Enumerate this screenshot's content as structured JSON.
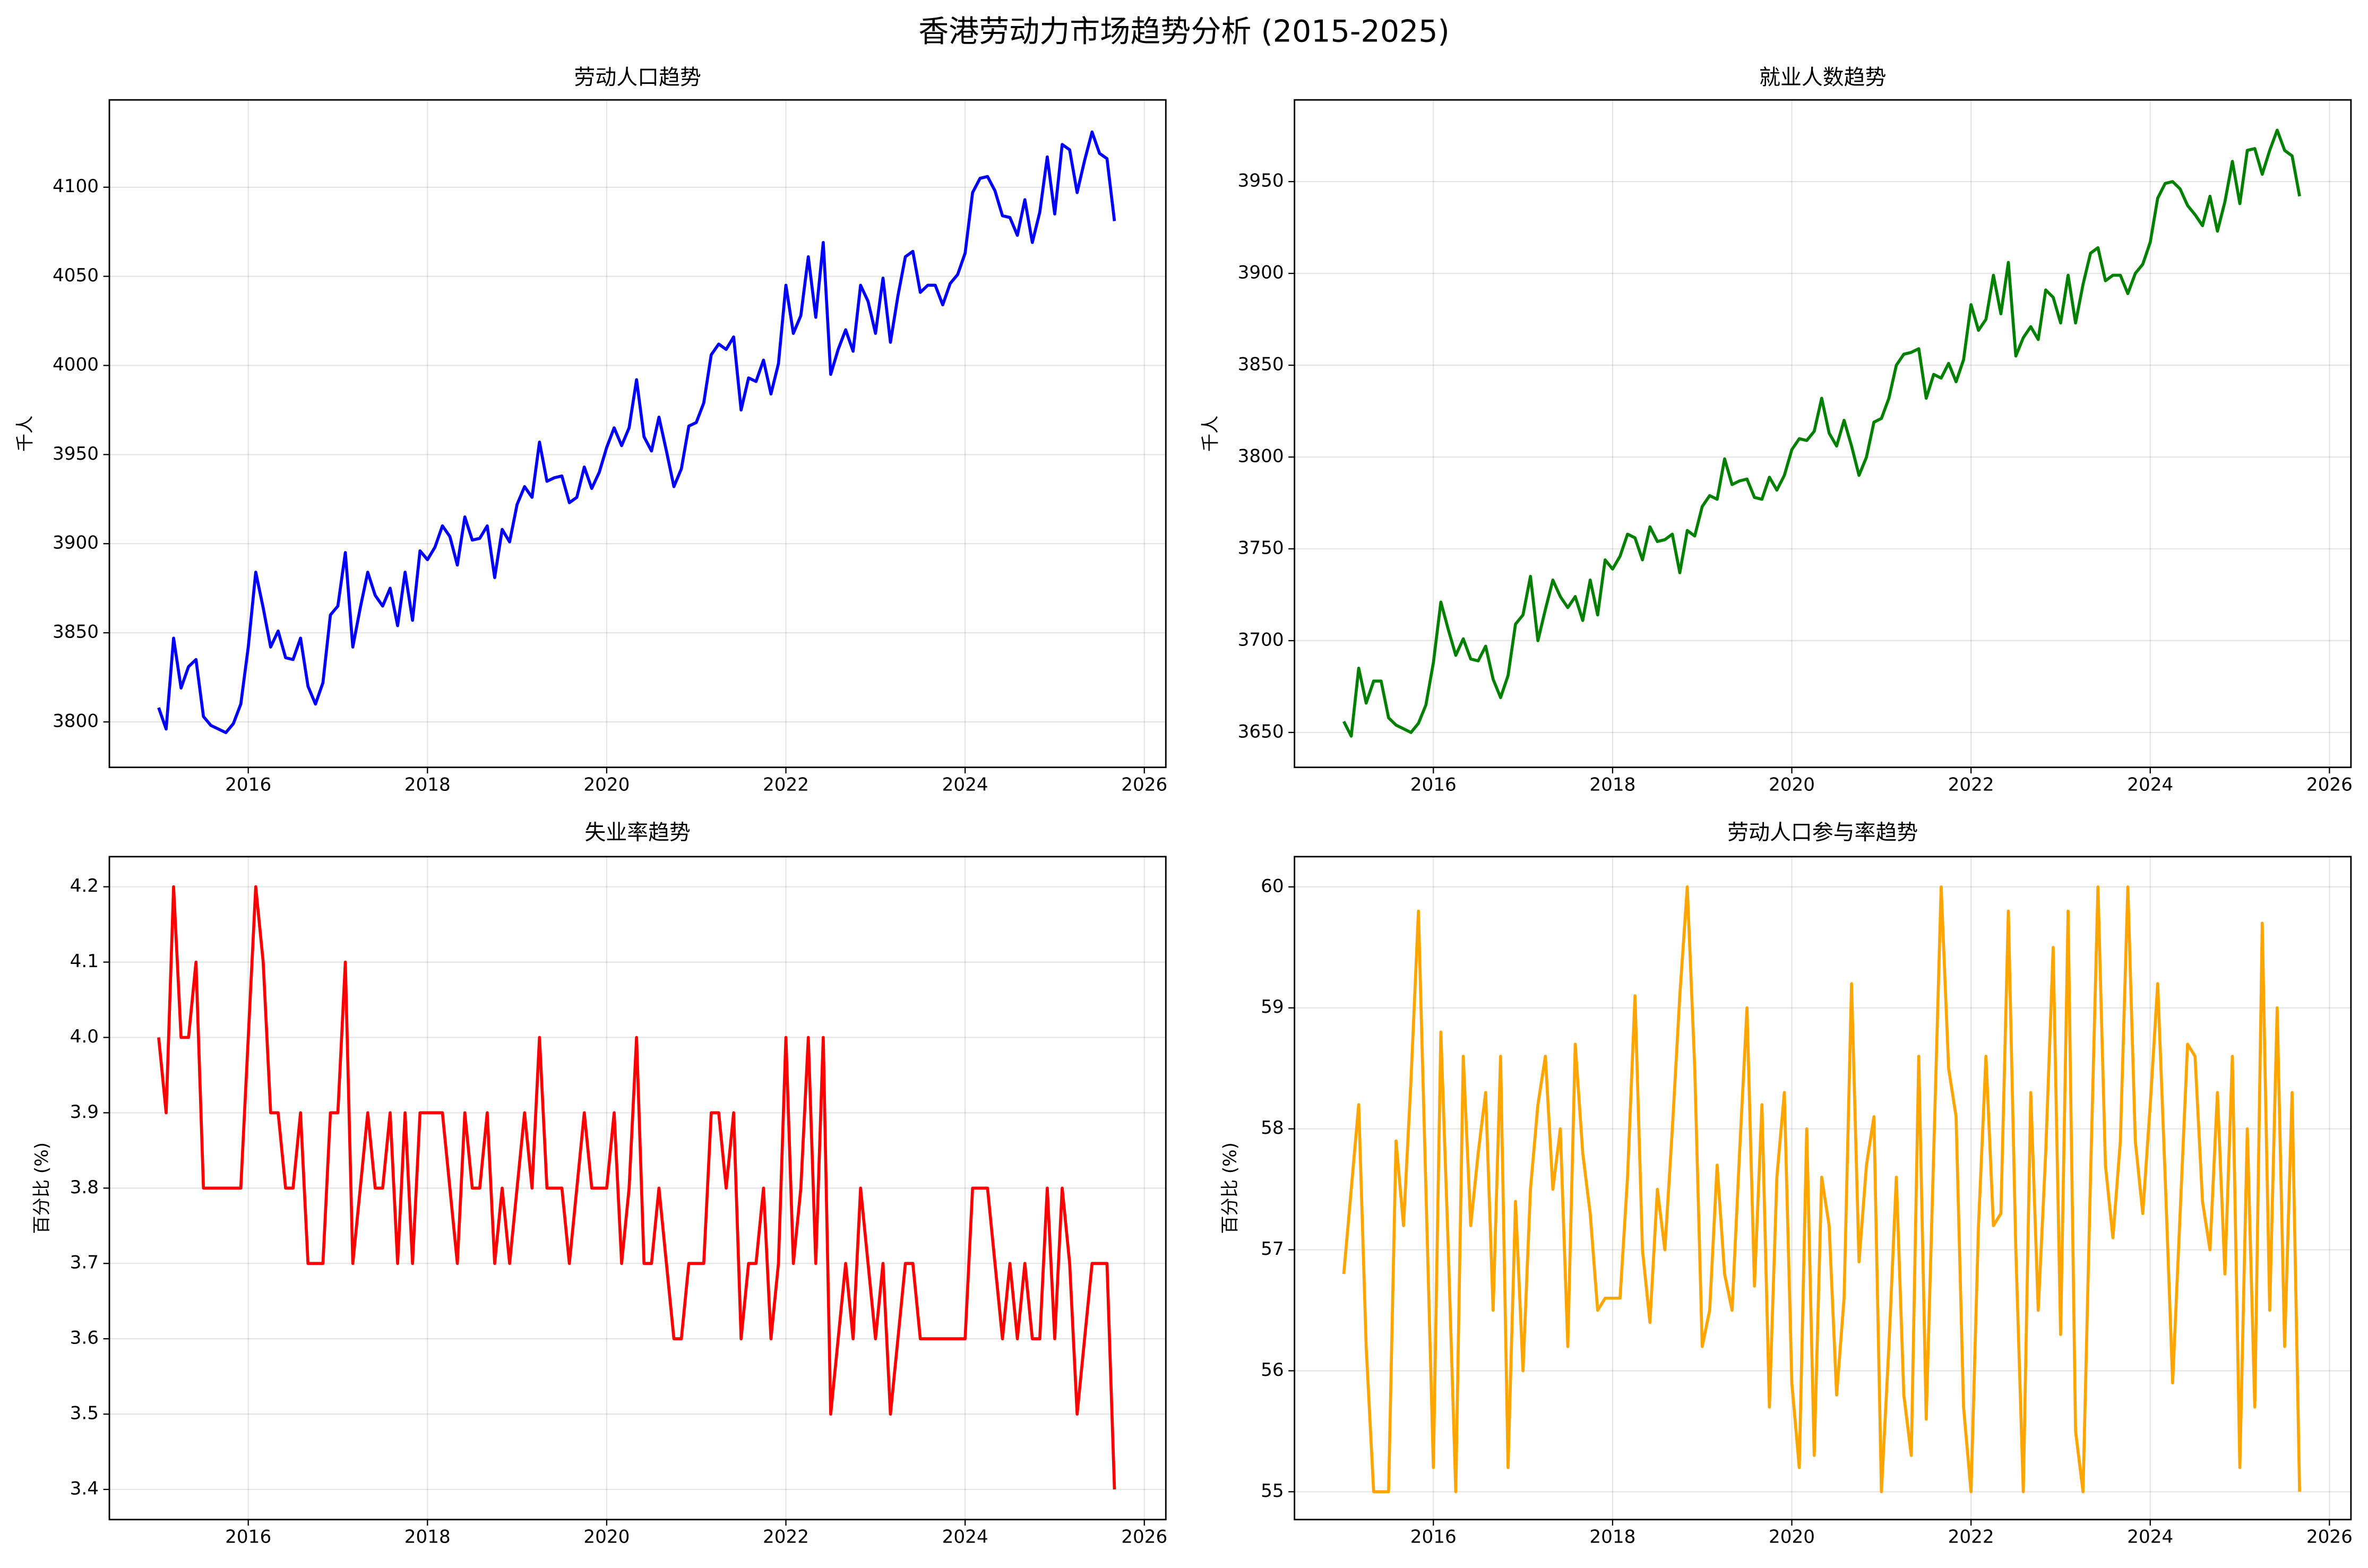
{
  "title": "香港劳动力市场趋势分析 (2015-2025)",
  "chart_data": [
    {
      "type": "line",
      "title": "劳动人口趋势",
      "ylabel": "千人",
      "color": "#0000ff",
      "grid": true,
      "x": [
        "2015-01",
        "2015-02",
        "2015-03",
        "2015-04",
        "2015-05",
        "2015-06",
        "2015-07",
        "2015-08",
        "2015-09",
        "2015-10",
        "2015-11",
        "2015-12",
        "2016-01",
        "2016-02",
        "2016-03",
        "2016-04",
        "2016-05",
        "2016-06",
        "2016-07",
        "2016-08",
        "2016-09",
        "2016-10",
        "2016-11",
        "2016-12",
        "2017-01",
        "2017-02",
        "2017-03",
        "2017-04",
        "2017-05",
        "2017-06",
        "2017-07",
        "2017-08",
        "2017-09",
        "2017-10",
        "2017-11",
        "2017-12",
        "2018-01",
        "2018-02",
        "2018-03",
        "2018-04",
        "2018-05",
        "2018-06",
        "2018-07",
        "2018-08",
        "2018-09",
        "2018-10",
        "2018-11",
        "2018-12",
        "2019-01",
        "2019-02",
        "2019-03",
        "2019-04",
        "2019-05",
        "2019-06",
        "2019-07",
        "2019-08",
        "2019-09",
        "2019-10",
        "2019-11",
        "2019-12",
        "2020-01",
        "2020-02",
        "2020-03",
        "2020-04",
        "2020-05",
        "2020-06",
        "2020-07",
        "2020-08",
        "2020-09",
        "2020-10",
        "2020-11",
        "2020-12",
        "2021-01",
        "2021-02",
        "2021-03",
        "2021-04",
        "2021-05",
        "2021-06",
        "2021-07",
        "2021-08",
        "2021-09",
        "2021-10",
        "2021-11",
        "2021-12",
        "2022-01",
        "2022-02",
        "2022-03",
        "2022-04",
        "2022-05",
        "2022-06",
        "2022-07",
        "2022-08",
        "2022-09",
        "2022-10",
        "2022-11",
        "2022-12",
        "2023-01",
        "2023-02",
        "2023-03",
        "2023-04",
        "2023-05",
        "2023-06",
        "2023-07",
        "2023-08",
        "2023-09",
        "2023-10",
        "2023-11",
        "2023-12",
        "2024-01",
        "2024-02",
        "2024-03",
        "2024-04",
        "2024-05",
        "2024-06",
        "2024-07",
        "2024-08",
        "2024-09",
        "2024-10",
        "2024-11",
        "2024-12",
        "2025-01",
        "2025-02",
        "2025-03",
        "2025-04",
        "2025-05",
        "2025-06",
        "2025-07",
        "2025-08",
        "2025-09"
      ],
      "values": [
        3808,
        3796,
        3847,
        3819,
        3831,
        3835,
        3803,
        3798,
        3796,
        3794,
        3799,
        3810,
        3842,
        3884,
        3864,
        3842,
        3851,
        3836,
        3835,
        3847,
        3820,
        3810,
        3822,
        3860,
        3865,
        3895,
        3842,
        3864,
        3884,
        3871,
        3865,
        3875,
        3854,
        3884,
        3857,
        3896,
        3891,
        3898,
        3910,
        3904,
        3888,
        3915,
        3902,
        3903,
        3910,
        3881,
        3908,
        3901,
        3922,
        3932,
        3926,
        3957,
        3935,
        3937,
        3938,
        3923,
        3926,
        3943,
        3931,
        3940,
        3954,
        3965,
        3955,
        3965,
        3992,
        3960,
        3952,
        3971,
        3952,
        3932,
        3942,
        3966,
        3968,
        3979,
        4006,
        4012,
        4009,
        4016,
        3975,
        3993,
        3991,
        4003,
        3984,
        4001,
        4045,
        4018,
        4028,
        4061,
        4027,
        4069,
        3995,
        4009,
        4020,
        4008,
        4045,
        4036,
        4018,
        4049,
        4013,
        4039,
        4061,
        4064,
        4041,
        4045,
        4045,
        4034,
        4046,
        4051,
        4063,
        4097,
        4105,
        4106,
        4098,
        4084,
        4083,
        4073,
        4093,
        4069,
        4086,
        4117,
        4085,
        4124,
        4121,
        4097,
        4115,
        4131,
        4119,
        4116,
        4081
      ],
      "xlim": [
        2014.45,
        2026.24
      ],
      "xticks": [
        2016,
        2018,
        2020,
        2022,
        2024,
        2026
      ],
      "ylim": [
        3774.5,
        4149
      ],
      "yticks": [
        3800,
        3850,
        3900,
        3950,
        4000,
        4050,
        4100
      ]
    },
    {
      "type": "line",
      "title": "就业人数趋势",
      "ylabel": "千人",
      "color": "#008000",
      "grid": true,
      "x": [
        "2015-01",
        "2015-02",
        "2015-03",
        "2015-04",
        "2015-05",
        "2015-06",
        "2015-07",
        "2015-08",
        "2015-09",
        "2015-10",
        "2015-11",
        "2015-12",
        "2016-01",
        "2016-02",
        "2016-03",
        "2016-04",
        "2016-05",
        "2016-06",
        "2016-07",
        "2016-08",
        "2016-09",
        "2016-10",
        "2016-11",
        "2016-12",
        "2017-01",
        "2017-02",
        "2017-03",
        "2017-04",
        "2017-05",
        "2017-06",
        "2017-07",
        "2017-08",
        "2017-09",
        "2017-10",
        "2017-11",
        "2017-12",
        "2018-01",
        "2018-02",
        "2018-03",
        "2018-04",
        "2018-05",
        "2018-06",
        "2018-07",
        "2018-08",
        "2018-09",
        "2018-10",
        "2018-11",
        "2018-12",
        "2019-01",
        "2019-02",
        "2019-03",
        "2019-04",
        "2019-05",
        "2019-06",
        "2019-07",
        "2019-08",
        "2019-09",
        "2019-10",
        "2019-11",
        "2019-12",
        "2020-01",
        "2020-02",
        "2020-03",
        "2020-04",
        "2020-05",
        "2020-06",
        "2020-07",
        "2020-08",
        "2020-09",
        "2020-10",
        "2020-11",
        "2020-12",
        "2021-01",
        "2021-02",
        "2021-03",
        "2021-04",
        "2021-05",
        "2021-06",
        "2021-07",
        "2021-08",
        "2021-09",
        "2021-10",
        "2021-11",
        "2021-12",
        "2022-01",
        "2022-02",
        "2022-03",
        "2022-04",
        "2022-05",
        "2022-06",
        "2022-07",
        "2022-08",
        "2022-09",
        "2022-10",
        "2022-11",
        "2022-12",
        "2023-01",
        "2023-02",
        "2023-03",
        "2023-04",
        "2023-05",
        "2023-06",
        "2023-07",
        "2023-08",
        "2023-09",
        "2023-10",
        "2023-11",
        "2023-12",
        "2024-01",
        "2024-02",
        "2024-03",
        "2024-04",
        "2024-05",
        "2024-06",
        "2024-07",
        "2024-08",
        "2024-09",
        "2024-10",
        "2024-11",
        "2024-12",
        "2025-01",
        "2025-02",
        "2025-03",
        "2025-04",
        "2025-05",
        "2025-06",
        "2025-07",
        "2025-08",
        "2025-09"
      ],
      "values": [
        3656,
        3648,
        3685,
        3666,
        3678,
        3678,
        3658,
        3654,
        3652,
        3650,
        3655,
        3665,
        3688,
        3721,
        3706,
        3692,
        3701,
        3690,
        3689,
        3697,
        3679,
        3669,
        3681,
        3709,
        3714,
        3735,
        3700,
        3717,
        3733,
        3724,
        3718,
        3724,
        3711,
        3733,
        3714,
        3744,
        3739,
        3746,
        3758,
        3756,
        3744,
        3762,
        3754,
        3755,
        3758,
        3737,
        3760,
        3757,
        3773,
        3779,
        3777,
        3799,
        3785,
        3787,
        3788,
        3778,
        3777,
        3789,
        3782,
        3790,
        3804,
        3810,
        3809,
        3814,
        3832,
        3813,
        3806,
        3820,
        3806,
        3790,
        3800,
        3819,
        3821,
        3832,
        3850,
        3856,
        3857,
        3859,
        3832,
        3845,
        3843,
        3851,
        3841,
        3853,
        3883,
        3869,
        3875,
        3899,
        3878,
        3906,
        3855,
        3865,
        3871,
        3864,
        3891,
        3887,
        3873,
        3899,
        3873,
        3894,
        3911,
        3914,
        3896,
        3899,
        3899,
        3889,
        3900,
        3905,
        3917,
        3941,
        3949,
        3950,
        3946,
        3937,
        3932,
        3926,
        3942,
        3923,
        3939,
        3961,
        3938,
        3967,
        3968,
        3954,
        3967,
        3978,
        3967,
        3964,
        3942
      ],
      "xlim": [
        2014.45,
        2026.24
      ],
      "xticks": [
        2016,
        2018,
        2020,
        2022,
        2024,
        2026
      ],
      "ylim": [
        3631,
        3994.5
      ],
      "yticks": [
        3650,
        3700,
        3750,
        3800,
        3850,
        3900,
        3950
      ]
    },
    {
      "type": "line",
      "title": "失业率趋势",
      "ylabel": "百分比 (%)",
      "color": "#ff0000",
      "grid": true,
      "x": [
        "2015-01",
        "2015-02",
        "2015-03",
        "2015-04",
        "2015-05",
        "2015-06",
        "2015-07",
        "2015-08",
        "2015-09",
        "2015-10",
        "2015-11",
        "2015-12",
        "2016-01",
        "2016-02",
        "2016-03",
        "2016-04",
        "2016-05",
        "2016-06",
        "2016-07",
        "2016-08",
        "2016-09",
        "2016-10",
        "2016-11",
        "2016-12",
        "2017-01",
        "2017-02",
        "2017-03",
        "2017-04",
        "2017-05",
        "2017-06",
        "2017-07",
        "2017-08",
        "2017-09",
        "2017-10",
        "2017-11",
        "2017-12",
        "2018-01",
        "2018-02",
        "2018-03",
        "2018-04",
        "2018-05",
        "2018-06",
        "2018-07",
        "2018-08",
        "2018-09",
        "2018-10",
        "2018-11",
        "2018-12",
        "2019-01",
        "2019-02",
        "2019-03",
        "2019-04",
        "2019-05",
        "2019-06",
        "2019-07",
        "2019-08",
        "2019-09",
        "2019-10",
        "2019-11",
        "2019-12",
        "2020-01",
        "2020-02",
        "2020-03",
        "2020-04",
        "2020-05",
        "2020-06",
        "2020-07",
        "2020-08",
        "2020-09",
        "2020-10",
        "2020-11",
        "2020-12",
        "2021-01",
        "2021-02",
        "2021-03",
        "2021-04",
        "2021-05",
        "2021-06",
        "2021-07",
        "2021-08",
        "2021-09",
        "2021-10",
        "2021-11",
        "2021-12",
        "2022-01",
        "2022-02",
        "2022-03",
        "2022-04",
        "2022-05",
        "2022-06",
        "2022-07",
        "2022-08",
        "2022-09",
        "2022-10",
        "2022-11",
        "2022-12",
        "2023-01",
        "2023-02",
        "2023-03",
        "2023-04",
        "2023-05",
        "2023-06",
        "2023-07",
        "2023-08",
        "2023-09",
        "2023-10",
        "2023-11",
        "2023-12",
        "2024-01",
        "2024-02",
        "2024-03",
        "2024-04",
        "2024-05",
        "2024-06",
        "2024-07",
        "2024-08",
        "2024-09",
        "2024-10",
        "2024-11",
        "2024-12",
        "2025-01",
        "2025-02",
        "2025-03",
        "2025-04",
        "2025-05",
        "2025-06",
        "2025-07",
        "2025-08",
        "2025-09"
      ],
      "values": [
        4.0,
        3.9,
        4.2,
        4.0,
        4.0,
        4.1,
        3.8,
        3.8,
        3.8,
        3.8,
        3.8,
        3.8,
        4.0,
        4.2,
        4.1,
        3.9,
        3.9,
        3.8,
        3.8,
        3.9,
        3.7,
        3.7,
        3.7,
        3.9,
        3.9,
        4.1,
        3.7,
        3.8,
        3.9,
        3.8,
        3.8,
        3.9,
        3.7,
        3.9,
        3.7,
        3.9,
        3.9,
        3.9,
        3.9,
        3.8,
        3.7,
        3.9,
        3.8,
        3.8,
        3.9,
        3.7,
        3.8,
        3.7,
        3.8,
        3.9,
        3.8,
        4.0,
        3.8,
        3.8,
        3.8,
        3.7,
        3.8,
        3.9,
        3.8,
        3.8,
        3.8,
        3.9,
        3.7,
        3.8,
        4.0,
        3.7,
        3.7,
        3.8,
        3.7,
        3.6,
        3.6,
        3.7,
        3.7,
        3.7,
        3.9,
        3.9,
        3.8,
        3.9,
        3.6,
        3.7,
        3.7,
        3.8,
        3.6,
        3.7,
        4.0,
        3.7,
        3.8,
        4.0,
        3.7,
        4.0,
        3.5,
        3.6,
        3.7,
        3.6,
        3.8,
        3.7,
        3.6,
        3.7,
        3.5,
        3.6,
        3.7,
        3.7,
        3.6,
        3.6,
        3.6,
        3.6,
        3.6,
        3.6,
        3.6,
        3.8,
        3.8,
        3.8,
        3.7,
        3.6,
        3.7,
        3.6,
        3.7,
        3.6,
        3.6,
        3.8,
        3.6,
        3.8,
        3.7,
        3.5,
        3.6,
        3.7,
        3.7,
        3.7,
        3.4
      ],
      "xlim": [
        2014.45,
        2026.24
      ],
      "xticks": [
        2016,
        2018,
        2020,
        2022,
        2024,
        2026
      ],
      "ylim": [
        3.36,
        4.24
      ],
      "yticks": [
        3.4,
        3.5,
        3.6,
        3.7,
        3.8,
        3.9,
        {
          "value": 4,
          "label": "4.0"
        },
        4.1,
        4.2
      ]
    },
    {
      "type": "line",
      "title": "劳动人口参与率趋势",
      "ylabel": "百分比 (%)",
      "color": "#ffa500",
      "grid": true,
      "x": [
        "2015-01",
        "2015-02",
        "2015-03",
        "2015-04",
        "2015-05",
        "2015-06",
        "2015-07",
        "2015-08",
        "2015-09",
        "2015-10",
        "2015-11",
        "2015-12",
        "2016-01",
        "2016-02",
        "2016-03",
        "2016-04",
        "2016-05",
        "2016-06",
        "2016-07",
        "2016-08",
        "2016-09",
        "2016-10",
        "2016-11",
        "2016-12",
        "2017-01",
        "2017-02",
        "2017-03",
        "2017-04",
        "2017-05",
        "2017-06",
        "2017-07",
        "2017-08",
        "2017-09",
        "2017-10",
        "2017-11",
        "2017-12",
        "2018-01",
        "2018-02",
        "2018-03",
        "2018-04",
        "2018-05",
        "2018-06",
        "2018-07",
        "2018-08",
        "2018-09",
        "2018-10",
        "2018-11",
        "2018-12",
        "2019-01",
        "2019-02",
        "2019-03",
        "2019-04",
        "2019-05",
        "2019-06",
        "2019-07",
        "2019-08",
        "2019-09",
        "2019-10",
        "2019-11",
        "2019-12",
        "2020-01",
        "2020-02",
        "2020-03",
        "2020-04",
        "2020-05",
        "2020-06",
        "2020-07",
        "2020-08",
        "2020-09",
        "2020-10",
        "2020-11",
        "2020-12",
        "2021-01",
        "2021-02",
        "2021-03",
        "2021-04",
        "2021-05",
        "2021-06",
        "2021-07",
        "2021-08",
        "2021-09",
        "2021-10",
        "2021-11",
        "2021-12",
        "2022-01",
        "2022-02",
        "2022-03",
        "2022-04",
        "2022-05",
        "2022-06",
        "2022-07",
        "2022-08",
        "2022-09",
        "2022-10",
        "2022-11",
        "2022-12",
        "2023-01",
        "2023-02",
        "2023-03",
        "2023-04",
        "2023-05",
        "2023-06",
        "2023-07",
        "2023-08",
        "2023-09",
        "2023-10",
        "2023-11",
        "2023-12",
        "2024-01",
        "2024-02",
        "2024-03",
        "2024-04",
        "2024-05",
        "2024-06",
        "2024-07",
        "2024-08",
        "2024-09",
        "2024-10",
        "2024-11",
        "2024-12",
        "2025-01",
        "2025-02",
        "2025-03",
        "2025-04",
        "2025-05",
        "2025-06",
        "2025-07",
        "2025-08",
        "2025-09"
      ],
      "values": [
        56.8,
        57.5,
        58.2,
        56.2,
        55.0,
        55.0,
        55.0,
        57.9,
        57.2,
        58.4,
        59.8,
        57.5,
        55.2,
        58.8,
        57.0,
        55.0,
        58.6,
        57.2,
        57.8,
        58.3,
        56.5,
        58.6,
        55.2,
        57.4,
        56.0,
        57.5,
        58.2,
        58.6,
        57.5,
        58.0,
        56.2,
        58.7,
        57.8,
        57.3,
        56.5,
        56.6,
        56.6,
        56.6,
        57.6,
        59.1,
        57.0,
        56.4,
        57.5,
        57.0,
        58.0,
        59.1,
        60.0,
        58.5,
        56.2,
        56.5,
        57.7,
        56.8,
        56.5,
        57.8,
        59.0,
        56.7,
        58.2,
        55.7,
        57.6,
        58.3,
        55.9,
        55.2,
        58.0,
        55.3,
        57.6,
        57.2,
        55.8,
        56.6,
        59.2,
        56.9,
        57.7,
        58.1,
        55.0,
        56.2,
        57.6,
        55.8,
        55.3,
        58.6,
        55.6,
        57.8,
        60.0,
        58.5,
        58.1,
        55.7,
        55.0,
        57.2,
        58.6,
        57.2,
        57.3,
        59.8,
        57.0,
        55.0,
        58.3,
        56.5,
        57.8,
        59.5,
        56.3,
        59.8,
        55.5,
        55.0,
        57.6,
        60.0,
        57.7,
        57.1,
        57.9,
        60.0,
        57.9,
        57.3,
        58.2,
        59.2,
        57.6,
        55.9,
        57.3,
        58.7,
        58.6,
        57.4,
        57.0,
        58.3,
        56.8,
        58.6,
        55.2,
        58.0,
        55.7,
        59.7,
        56.5,
        59.0,
        56.2,
        58.3,
        55.0
      ],
      "xlim": [
        2014.45,
        2026.24
      ],
      "xticks": [
        2016,
        2018,
        2020,
        2022,
        2024,
        2026
      ],
      "ylim": [
        54.77,
        60.25
      ],
      "yticks": [
        55,
        56,
        57,
        58,
        59,
        60
      ]
    }
  ]
}
